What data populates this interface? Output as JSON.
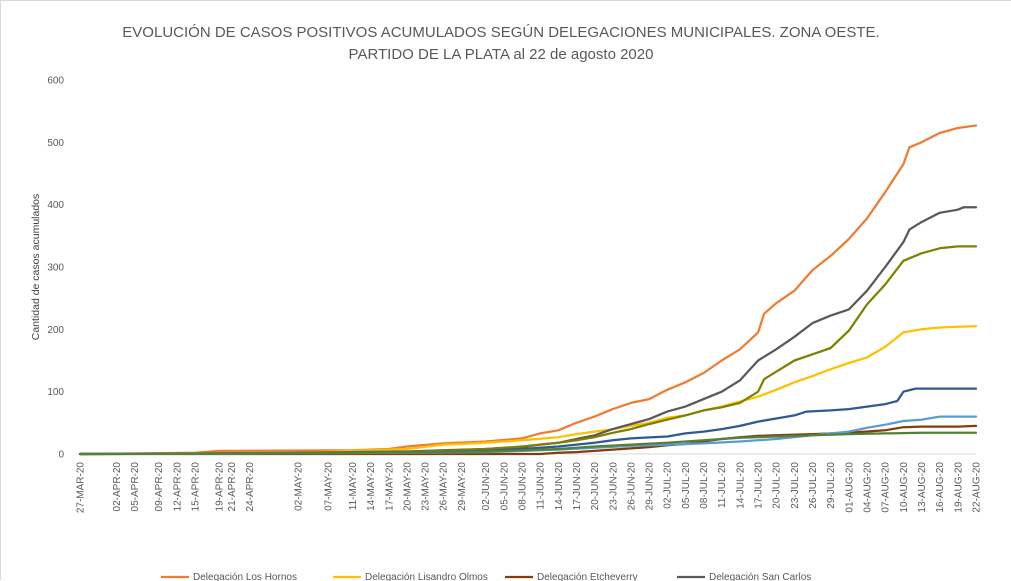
{
  "chart_data": {
    "type": "line",
    "title": "EVOLUCIÓN DE CASOS POSITIVOS ACUMULADOS SEGÚN DELEGACIONES MUNICIPALES. ZONA OESTE.",
    "subtitle": "PARTIDO DE LA PLATA al 22 de agosto 2020",
    "xlabel": "",
    "ylabel": "Cantidad de casos acumulados",
    "ylim": [
      0,
      600
    ],
    "yticks": [
      0,
      100,
      200,
      300,
      400,
      500,
      600
    ],
    "x_start": "27-MAR-20",
    "x_end": "22-AUG-20",
    "x_tick_labels": [
      "27-MAR-20",
      "02-APR-20",
      "05-APR-20",
      "09-APR-20",
      "12-APR-20",
      "15-APR-20",
      "19-APR-20",
      "21-APR-20",
      "24-APR-20",
      "02-MAY-20",
      "07-MAY-20",
      "11-MAY-20",
      "14-MAY-20",
      "17-MAY-20",
      "20-MAY-20",
      "23-MAY-20",
      "26-MAY-20",
      "29-MAY-20",
      "02-JUN-20",
      "05-JUN-20",
      "08-JUN-20",
      "11-JUN-20",
      "14-JUN-20",
      "17-JUN-20",
      "20-JUN-20",
      "23-JUN-20",
      "26-JUN-20",
      "29-JUN-20",
      "02-JUL-20",
      "05-JUL-20",
      "08-JUL-20",
      "11-JUL-20",
      "14-JUL-20",
      "17-JUL-20",
      "20-JUL-20",
      "23-JUL-20",
      "26-JUL-20",
      "29-JUL-20",
      "01-AUG-20",
      "04-AUG-20",
      "07-AUG-20",
      "10-AUG-20",
      "13-AUG-20",
      "16-AUG-20",
      "19-AUG-20",
      "22-AUG-20"
    ],
    "grid": false,
    "legend_position": "bottom",
    "series": [
      {
        "name": "Delegación Los Hornos",
        "color": "#ed7d31",
        "points": [
          [
            "27-MAR-20",
            0
          ],
          [
            "15-APR-20",
            2
          ],
          [
            "19-APR-20",
            5
          ],
          [
            "11-MAY-20",
            6
          ],
          [
            "17-MAY-20",
            8
          ],
          [
            "20-MAY-20",
            12
          ],
          [
            "26-MAY-20",
            17
          ],
          [
            "02-JUN-20",
            20
          ],
          [
            "08-JUN-20",
            25
          ],
          [
            "11-JUN-20",
            33
          ],
          [
            "14-JUN-20",
            38
          ],
          [
            "17-JUN-20",
            50
          ],
          [
            "20-JUN-20",
            60
          ],
          [
            "23-JUN-20",
            72
          ],
          [
            "26-JUN-20",
            82
          ],
          [
            "29-JUN-20",
            88
          ],
          [
            "02-JUL-20",
            103
          ],
          [
            "05-JUL-20",
            115
          ],
          [
            "08-JUL-20",
            130
          ],
          [
            "11-JUL-20",
            150
          ],
          [
            "14-JUL-20",
            168
          ],
          [
            "17-JUL-20",
            195
          ],
          [
            "18-JUL-20",
            225
          ],
          [
            "20-JUL-20",
            242
          ],
          [
            "23-JUL-20",
            262
          ],
          [
            "26-JUL-20",
            295
          ],
          [
            "29-JUL-20",
            318
          ],
          [
            "01-AUG-20",
            345
          ],
          [
            "04-AUG-20",
            378
          ],
          [
            "07-AUG-20",
            420
          ],
          [
            "10-AUG-20",
            465
          ],
          [
            "11-AUG-20",
            492
          ],
          [
            "13-AUG-20",
            500
          ],
          [
            "16-AUG-20",
            515
          ],
          [
            "19-AUG-20",
            523
          ],
          [
            "22-AUG-20",
            527
          ]
        ]
      },
      {
        "name": "Delegación Lisandro Olmos",
        "color": "#ffc000",
        "points": [
          [
            "27-MAR-20",
            0
          ],
          [
            "15-APR-20",
            1
          ],
          [
            "02-MAY-20",
            2
          ],
          [
            "20-MAY-20",
            8
          ],
          [
            "26-MAY-20",
            15
          ],
          [
            "02-JUN-20",
            18
          ],
          [
            "08-JUN-20",
            22
          ],
          [
            "14-JUN-20",
            27
          ],
          [
            "17-JUN-20",
            32
          ],
          [
            "20-JUN-20",
            36
          ],
          [
            "23-JUN-20",
            40
          ],
          [
            "26-JUN-20",
            45
          ],
          [
            "29-JUN-20",
            50
          ],
          [
            "02-JUL-20",
            58
          ],
          [
            "05-JUL-20",
            62
          ],
          [
            "08-JUL-20",
            70
          ],
          [
            "11-JUL-20",
            76
          ],
          [
            "14-JUL-20",
            84
          ],
          [
            "17-JUL-20",
            92
          ],
          [
            "20-JUL-20",
            103
          ],
          [
            "23-JUL-20",
            115
          ],
          [
            "26-JUL-20",
            125
          ],
          [
            "29-JUL-20",
            136
          ],
          [
            "01-AUG-20",
            146
          ],
          [
            "04-AUG-20",
            155
          ],
          [
            "07-AUG-20",
            172
          ],
          [
            "10-AUG-20",
            195
          ],
          [
            "13-AUG-20",
            200
          ],
          [
            "16-AUG-20",
            203
          ],
          [
            "19-AUG-20",
            204
          ],
          [
            "22-AUG-20",
            205
          ]
        ]
      },
      {
        "name": "Delegación Etcheverry",
        "color": "#843c0c",
        "points": [
          [
            "27-MAR-20",
            0
          ],
          [
            "11-JUN-20",
            0
          ],
          [
            "14-JUN-20",
            2
          ],
          [
            "17-JUN-20",
            3
          ],
          [
            "20-JUN-20",
            5
          ],
          [
            "23-JUN-20",
            7
          ],
          [
            "26-JUN-20",
            9
          ],
          [
            "29-JUN-20",
            11
          ],
          [
            "02-JUL-20",
            14
          ],
          [
            "05-JUL-20",
            16
          ],
          [
            "08-JUL-20",
            20
          ],
          [
            "11-JUL-20",
            24
          ],
          [
            "14-JUL-20",
            27
          ],
          [
            "17-JUL-20",
            29
          ],
          [
            "20-JUL-20",
            30
          ],
          [
            "26-JUL-20",
            32
          ],
          [
            "01-AUG-20",
            34
          ],
          [
            "07-AUG-20",
            38
          ],
          [
            "10-AUG-20",
            43
          ],
          [
            "13-AUG-20",
            44
          ],
          [
            "19-AUG-20",
            44
          ],
          [
            "22-AUG-20",
            45
          ]
        ]
      },
      {
        "name": "Delegación San Carlos",
        "color": "#595959",
        "points": [
          [
            "27-MAR-20",
            0
          ],
          [
            "15-APR-20",
            1
          ],
          [
            "02-MAY-20",
            2
          ],
          [
            "20-MAY-20",
            4
          ],
          [
            "26-MAY-20",
            6
          ],
          [
            "02-JUN-20",
            8
          ],
          [
            "08-JUN-20",
            11
          ],
          [
            "11-JUN-20",
            15
          ],
          [
            "14-JUN-20",
            18
          ],
          [
            "17-JUN-20",
            24
          ],
          [
            "20-JUN-20",
            30
          ],
          [
            "23-JUN-20",
            40
          ],
          [
            "26-JUN-20",
            48
          ],
          [
            "29-JUN-20",
            56
          ],
          [
            "02-JUL-20",
            68
          ],
          [
            "05-JUL-20",
            76
          ],
          [
            "08-JUL-20",
            88
          ],
          [
            "11-JUL-20",
            100
          ],
          [
            "14-JUL-20",
            118
          ],
          [
            "17-JUL-20",
            150
          ],
          [
            "20-JUL-20",
            168
          ],
          [
            "23-JUL-20",
            188
          ],
          [
            "26-JUL-20",
            210
          ],
          [
            "29-JUL-20",
            222
          ],
          [
            "01-AUG-20",
            232
          ],
          [
            "04-AUG-20",
            262
          ],
          [
            "07-AUG-20",
            300
          ],
          [
            "10-AUG-20",
            340
          ],
          [
            "11-AUG-20",
            360
          ],
          [
            "13-AUG-20",
            372
          ],
          [
            "16-AUG-20",
            387
          ],
          [
            "19-AUG-20",
            392
          ],
          [
            "20-AUG-20",
            396
          ],
          [
            "22-AUG-20",
            396
          ]
        ]
      },
      {
        "name": "",
        "color": "#808000",
        "points": [
          [
            "27-MAR-20",
            0
          ],
          [
            "02-MAY-20",
            1
          ],
          [
            "20-MAY-20",
            3
          ],
          [
            "26-MAY-20",
            5
          ],
          [
            "02-JUN-20",
            8
          ],
          [
            "08-JUN-20",
            12
          ],
          [
            "11-JUN-20",
            15
          ],
          [
            "14-JUN-20",
            18
          ],
          [
            "17-JUN-20",
            22
          ],
          [
            "20-JUN-20",
            27
          ],
          [
            "23-JUN-20",
            34
          ],
          [
            "26-JUN-20",
            40
          ],
          [
            "29-JUN-20",
            48
          ],
          [
            "02-JUL-20",
            55
          ],
          [
            "05-JUL-20",
            62
          ],
          [
            "08-JUL-20",
            70
          ],
          [
            "11-JUL-20",
            75
          ],
          [
            "14-JUL-20",
            82
          ],
          [
            "17-JUL-20",
            100
          ],
          [
            "18-JUL-20",
            120
          ],
          [
            "20-JUL-20",
            132
          ],
          [
            "23-JUL-20",
            150
          ],
          [
            "26-JUL-20",
            160
          ],
          [
            "29-JUL-20",
            170
          ],
          [
            "01-AUG-20",
            198
          ],
          [
            "04-AUG-20",
            240
          ],
          [
            "07-AUG-20",
            272
          ],
          [
            "10-AUG-20",
            310
          ],
          [
            "13-AUG-20",
            322
          ],
          [
            "16-AUG-20",
            330
          ],
          [
            "19-AUG-20",
            333
          ],
          [
            "22-AUG-20",
            333
          ]
        ]
      },
      {
        "name": "",
        "color": "#2e5a96",
        "points": [
          [
            "27-MAR-20",
            0
          ],
          [
            "02-MAY-20",
            1
          ],
          [
            "20-MAY-20",
            2
          ],
          [
            "02-JUN-20",
            5
          ],
          [
            "08-JUN-20",
            8
          ],
          [
            "14-JUN-20",
            12
          ],
          [
            "17-JUN-20",
            15
          ],
          [
            "20-JUN-20",
            18
          ],
          [
            "23-JUN-20",
            22
          ],
          [
            "26-JUN-20",
            25
          ],
          [
            "02-JUL-20",
            28
          ],
          [
            "05-JUL-20",
            33
          ],
          [
            "08-JUL-20",
            36
          ],
          [
            "11-JUL-20",
            40
          ],
          [
            "14-JUL-20",
            45
          ],
          [
            "17-JUL-20",
            52
          ],
          [
            "20-JUL-20",
            57
          ],
          [
            "23-JUL-20",
            62
          ],
          [
            "25-JUL-20",
            68
          ],
          [
            "29-JUL-20",
            70
          ],
          [
            "01-AUG-20",
            72
          ],
          [
            "04-AUG-20",
            76
          ],
          [
            "07-AUG-20",
            80
          ],
          [
            "09-AUG-20",
            85
          ],
          [
            "10-AUG-20",
            100
          ],
          [
            "12-AUG-20",
            105
          ],
          [
            "22-AUG-20",
            105
          ]
        ]
      },
      {
        "name": "",
        "color": "#5b9bd5",
        "points": [
          [
            "27-MAR-20",
            0
          ],
          [
            "02-MAY-20",
            1
          ],
          [
            "02-JUN-20",
            3
          ],
          [
            "14-JUN-20",
            7
          ],
          [
            "20-JUN-20",
            10
          ],
          [
            "26-JUN-20",
            13
          ],
          [
            "02-JUL-20",
            15
          ],
          [
            "08-JUL-20",
            17
          ],
          [
            "14-JUL-20",
            20
          ],
          [
            "20-JUL-20",
            24
          ],
          [
            "26-JUL-20",
            30
          ],
          [
            "01-AUG-20",
            36
          ],
          [
            "04-AUG-20",
            42
          ],
          [
            "07-AUG-20",
            47
          ],
          [
            "10-AUG-20",
            53
          ],
          [
            "13-AUG-20",
            55
          ],
          [
            "16-AUG-20",
            60
          ],
          [
            "22-AUG-20",
            60
          ]
        ]
      },
      {
        "name": "",
        "color": "#548235",
        "points": [
          [
            "27-MAR-20",
            0
          ],
          [
            "02-MAY-20",
            1
          ],
          [
            "02-JUN-20",
            4
          ],
          [
            "14-JUN-20",
            8
          ],
          [
            "20-JUN-20",
            12
          ],
          [
            "26-JUN-20",
            15
          ],
          [
            "02-JUL-20",
            18
          ],
          [
            "08-JUL-20",
            22
          ],
          [
            "14-JUL-20",
            26
          ],
          [
            "20-JUL-20",
            28
          ],
          [
            "26-JUL-20",
            30
          ],
          [
            "01-AUG-20",
            32
          ],
          [
            "07-AUG-20",
            33
          ],
          [
            "13-AUG-20",
            34
          ],
          [
            "22-AUG-20",
            34
          ]
        ]
      }
    ]
  }
}
